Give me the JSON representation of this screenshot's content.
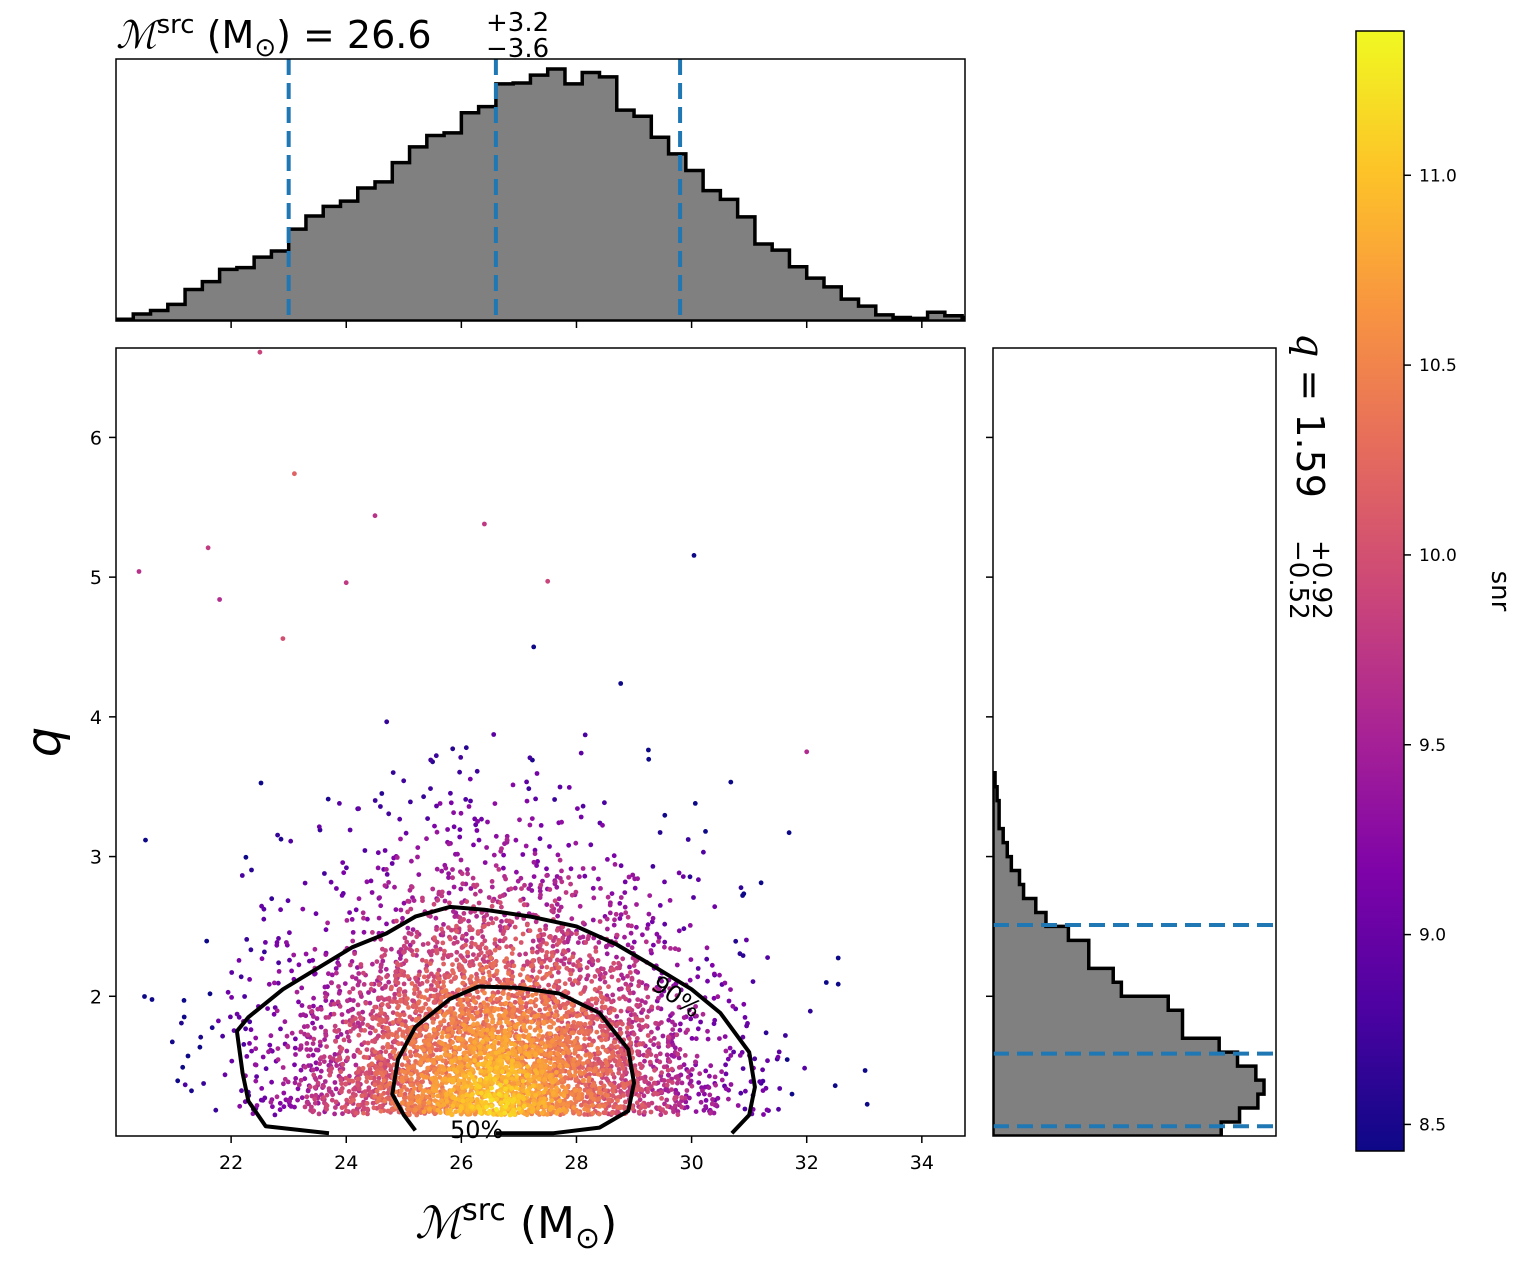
{
  "chart_data": [
    {
      "type": "histogram",
      "panel": "marginal-top",
      "title": {
        "base": "ℳ",
        "sup": "src",
        "unit": " (M",
        "unit_sub": "⊙",
        "unit_close": ")",
        "eq": " = 26.6",
        "err_plus": "+3.2",
        "err_minus": "−3.6"
      },
      "x_range": [
        20.0,
        34.75
      ],
      "bin_edges_start": 20.0,
      "bin_width": 0.3,
      "counts": [
        0.02,
        0.08,
        0.12,
        0.19,
        0.36,
        0.45,
        0.59,
        0.61,
        0.73,
        0.8,
        1.05,
        1.2,
        1.31,
        1.37,
        1.52,
        1.59,
        1.81,
        1.99,
        2.12,
        2.15,
        2.38,
        2.45,
        2.71,
        2.72,
        2.81,
        2.88,
        2.71,
        2.84,
        2.79,
        2.41,
        2.34,
        2.1,
        1.91,
        1.72,
        1.49,
        1.39,
        1.19,
        0.88,
        0.81,
        0.62,
        0.49,
        0.39,
        0.25,
        0.17,
        0.07,
        0.04,
        0.03,
        0.1,
        0.06,
        0.04
      ],
      "quantile_lines": [
        23.0,
        26.6,
        29.8
      ]
    },
    {
      "type": "scatter",
      "panel": "joint",
      "xlabel": {
        "base": "ℳ",
        "sup": "src",
        "rest": " (M",
        "sub": "⊙",
        "close": ")"
      },
      "ylabel": "q",
      "x_range": [
        20.0,
        34.75
      ],
      "y_range": [
        1.0,
        6.64
      ],
      "x_ticks": [
        22,
        24,
        26,
        28,
        30,
        32,
        34
      ],
      "y_ticks": [
        2,
        3,
        4,
        5,
        6
      ],
      "x_tick_labels": [
        "22",
        "24",
        "26",
        "28",
        "30",
        "32",
        "34"
      ],
      "y_tick_labels": [
        "2",
        "3",
        "4",
        "5",
        "6"
      ],
      "color_by": "snr",
      "sample_distribution": {
        "center_x": 26.6,
        "spread_x": 1.8,
        "center_q": 1.4,
        "spread_q": 0.55
      },
      "sparse_points": [
        [
          20.4,
          5.04
        ],
        [
          21.6,
          5.21
        ],
        [
          24.5,
          5.44
        ],
        [
          26.4,
          5.38
        ],
        [
          23.1,
          5.74
        ],
        [
          32.0,
          3.75
        ],
        [
          22.5,
          6.61
        ],
        [
          27.5,
          4.97
        ],
        [
          24.0,
          4.96
        ],
        [
          21.8,
          4.84
        ],
        [
          22.9,
          4.56
        ]
      ],
      "contours": [
        {
          "label": "90%",
          "points": [
            [
              23.7,
              1.02
            ],
            [
              22.6,
              1.07
            ],
            [
              22.3,
              1.25
            ],
            [
              22.2,
              1.45
            ],
            [
              22.1,
              1.75
            ],
            [
              22.3,
              1.85
            ],
            [
              22.9,
              2.05
            ],
            [
              23.5,
              2.2
            ],
            [
              24.1,
              2.35
            ],
            [
              24.7,
              2.45
            ],
            [
              25.2,
              2.57
            ],
            [
              25.8,
              2.64
            ],
            [
              26.4,
              2.62
            ],
            [
              27.2,
              2.57
            ],
            [
              28.0,
              2.5
            ],
            [
              28.7,
              2.37
            ],
            [
              29.4,
              2.2
            ],
            [
              30.0,
              2.05
            ],
            [
              30.5,
              1.88
            ],
            [
              31.0,
              1.6
            ],
            [
              31.1,
              1.35
            ],
            [
              31.0,
              1.15
            ],
            [
              30.7,
              1.02
            ]
          ]
        },
        {
          "label": "50%",
          "points": [
            [
              25.2,
              1.04
            ],
            [
              25.0,
              1.15
            ],
            [
              24.8,
              1.3
            ],
            [
              24.9,
              1.55
            ],
            [
              25.2,
              1.78
            ],
            [
              25.8,
              1.98
            ],
            [
              26.3,
              2.07
            ],
            [
              27.0,
              2.06
            ],
            [
              27.7,
              2.02
            ],
            [
              28.4,
              1.88
            ],
            [
              28.9,
              1.62
            ],
            [
              29.0,
              1.38
            ],
            [
              28.9,
              1.18
            ],
            [
              28.4,
              1.06
            ],
            [
              27.6,
              1.02
            ],
            [
              26.6,
              1.02
            ]
          ]
        }
      ],
      "contour_labels": [
        "90%",
        "50%"
      ]
    },
    {
      "type": "histogram",
      "panel": "marginal-right",
      "orientation": "horizontal",
      "title": {
        "base": "q",
        "eq": " = 1.59",
        "err_plus": "+0.92",
        "err_minus": "−0.52"
      },
      "y_range": [
        1.0,
        6.64
      ],
      "bin_edges_start": 1.0,
      "bin_width": 0.1,
      "counts": [
        1.12,
        1.21,
        1.3,
        1.33,
        1.29,
        1.2,
        1.11,
        0.93,
        0.93,
        0.86,
        0.63,
        0.59,
        0.47,
        0.47,
        0.37,
        0.26,
        0.21,
        0.15,
        0.13,
        0.09,
        0.07,
        0.05,
        0.03,
        0.03,
        0.02,
        0.01
      ],
      "quantile_lines": [
        1.07,
        1.59,
        2.51
      ]
    },
    {
      "type": "colorbar",
      "label": "snr",
      "colormap": "plasma",
      "range": [
        8.43,
        11.38
      ],
      "ticks": [
        8.5,
        9.0,
        9.5,
        10.0,
        10.5,
        11.0
      ],
      "tick_labels": [
        "8.5",
        "9.0",
        "9.5",
        "10.0",
        "10.5",
        "11.0"
      ]
    }
  ],
  "colors": {
    "hist_fill": "#808080",
    "hist_edge": "#000000",
    "quantile": "#1f77b4",
    "contour": "#000000"
  }
}
